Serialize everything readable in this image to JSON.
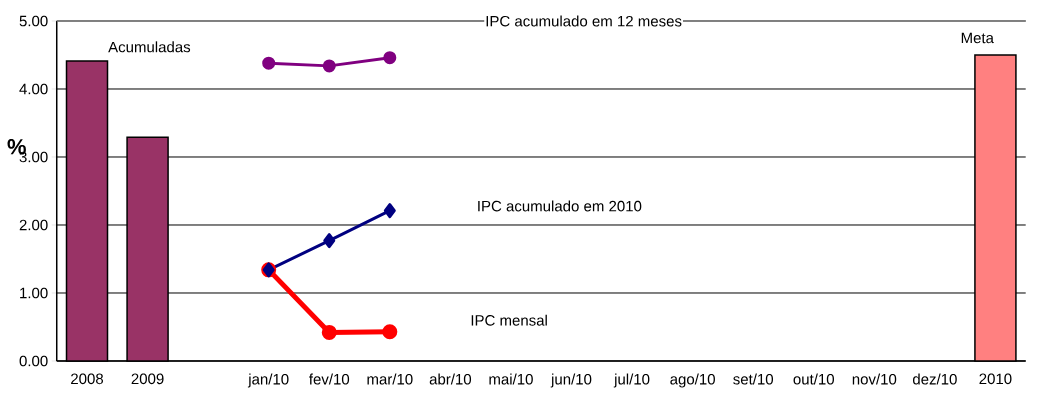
{
  "chart_data": {
    "type": "bar",
    "ylabel": "%",
    "categories": [
      "2008",
      "2009",
      null,
      "jan/10",
      "fev/10",
      "mar/10",
      "abr/10",
      "mai/10",
      "jun/10",
      "jul/10",
      "ago/10",
      "set/10",
      "out/10",
      "nov/10",
      "dez/10",
      "2010"
    ],
    "series": [
      {
        "colors": [
          "#993366",
          "#993366",
          null,
          null,
          null,
          null,
          null,
          null,
          null,
          null,
          null,
          null,
          null,
          null,
          null,
          "#ff8080"
        ],
        "values": [
          4.41,
          3.29,
          null,
          null,
          null,
          null,
          null,
          null,
          null,
          null,
          null,
          null,
          null,
          null,
          null,
          4.5
        ]
      },
      {
        "type": "line",
        "name": "IPC acumulado em  12  meses",
        "color": "#800080",
        "marker": "circle",
        "values": [
          null,
          null,
          null,
          4.38,
          4.34,
          4.46,
          null,
          null,
          null,
          null,
          null,
          null,
          null,
          null,
          null,
          null
        ]
      },
      {
        "type": "line",
        "name": "IPC acumulado em 2010",
        "color": "#000080",
        "marker": "diamond",
        "values": [
          null,
          null,
          null,
          1.34,
          1.77,
          2.21,
          null,
          null,
          null,
          null,
          null,
          null,
          null,
          null,
          null,
          null
        ]
      },
      {
        "type": "line",
        "name": "IPC mensal",
        "color": "#ff0000",
        "marker": "circle",
        "values": [
          null,
          null,
          null,
          1.34,
          0.42,
          0.43,
          null,
          null,
          null,
          null,
          null,
          null,
          null,
          null,
          null,
          null
        ]
      }
    ],
    "annotations": [
      "Acumuladas",
      "Meta"
    ],
    "ylim": [
      0,
      5
    ],
    "yticks": [
      {
        "value": 0,
        "label": "0.00"
      },
      {
        "value": 1,
        "label": "1.00"
      },
      {
        "value": 2,
        "label": "2.00"
      },
      {
        "value": 3,
        "label": "3.00"
      },
      {
        "value": 4,
        "label": "4.00"
      },
      {
        "value": 5,
        "label": "5.00"
      }
    ],
    "grid": "y"
  }
}
